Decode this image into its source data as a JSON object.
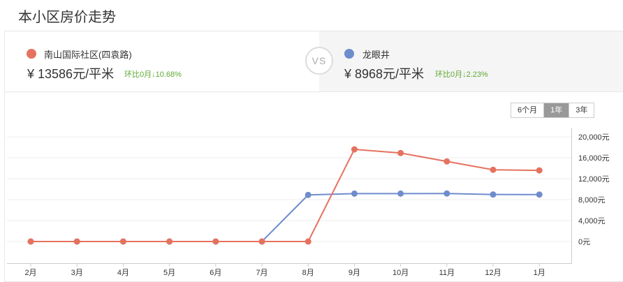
{
  "page": {
    "title": "本小区房价走势"
  },
  "compare": {
    "left": {
      "name": "南山国际社区(四袁路)",
      "price": "¥ 13586元/平米",
      "change": "环比0月↓10.68%",
      "color": "#e5725f"
    },
    "vs_label": "VS",
    "right": {
      "name": "龙眼井",
      "price": "¥ 8968元/平米",
      "change": "环比0月↓2.23%",
      "color": "#6f8ccc"
    }
  },
  "periods": [
    {
      "label": "6个月",
      "active": false
    },
    {
      "label": "1年",
      "active": true
    },
    {
      "label": "3年",
      "active": false
    }
  ],
  "chart_data": {
    "type": "line",
    "categories": [
      "2月",
      "3月",
      "4月",
      "5月",
      "6月",
      "7月",
      "8月",
      "9月",
      "10月",
      "11月",
      "12月",
      "1月"
    ],
    "series": [
      {
        "name": "南山国际社区(四袁路)",
        "color": "#e5725f",
        "values": [
          0,
          0,
          0,
          0,
          0,
          0,
          0,
          17600,
          16900,
          15300,
          13700,
          13586
        ]
      },
      {
        "name": "龙眼井",
        "color": "#6f8ccc",
        "values": [
          0,
          0,
          0,
          0,
          0,
          0,
          8900,
          9150,
          9150,
          9170,
          8980,
          8968
        ]
      }
    ],
    "yticks": [
      "0元",
      "4,000元",
      "8,000元",
      "12,000元",
      "16,000元",
      "20,000元"
    ],
    "ylim": [
      0,
      20000
    ],
    "grid": true
  }
}
